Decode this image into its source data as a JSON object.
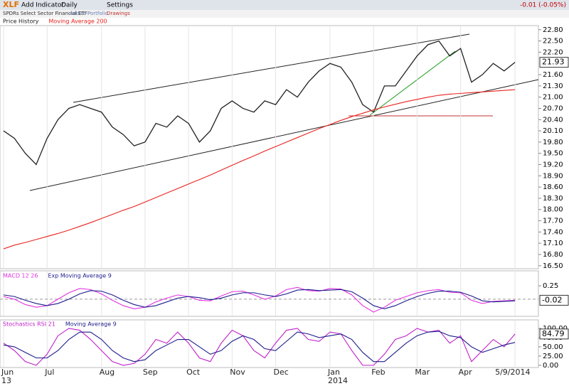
{
  "toolbar": {
    "symbol": "XLF",
    "add_indicator": "Add Indicator",
    "period": "Daily",
    "settings": "Settings",
    "change": "-0.01 (-0.05%)",
    "subtitle": "SPDRs Select Sector Financial ETF",
    "portfolio": "Add to Portfolio",
    "drawings": "Drawings"
  },
  "chart_data": [
    {
      "type": "line",
      "categories": [
        "Jun\n13",
        null,
        null,
        null,
        "Jul",
        null,
        null,
        null,
        null,
        "Aug",
        null,
        null,
        null,
        "Sep",
        null,
        null,
        null,
        "Oct",
        null,
        null,
        null,
        "Nov",
        null,
        null,
        null,
        "Dec",
        null,
        null,
        null,
        null,
        "Jan\n2014",
        null,
        null,
        null,
        "Feb",
        null,
        null,
        null,
        "Mar",
        null,
        null,
        null,
        "Apr",
        null,
        null,
        null,
        null,
        "5/9/2014"
      ],
      "series": [
        {
          "name": "Price History",
          "color": "#222222",
          "values": [
            20.1,
            19.9,
            19.5,
            19.2,
            19.9,
            20.4,
            20.7,
            20.8,
            20.7,
            20.6,
            20.2,
            20.0,
            19.7,
            19.8,
            20.3,
            20.2,
            20.5,
            20.3,
            19.8,
            20.1,
            20.7,
            20.9,
            20.7,
            20.6,
            20.9,
            20.8,
            21.2,
            21.0,
            21.4,
            21.7,
            21.9,
            21.8,
            21.4,
            20.8,
            20.6,
            21.3,
            21.3,
            21.7,
            22.1,
            22.4,
            22.5,
            22.1,
            22.3,
            21.4,
            21.6,
            21.9,
            21.7,
            21.93
          ]
        },
        {
          "name": "Moving Average 200",
          "color": "#e8231e",
          "values": [
            16.95,
            17.05,
            17.12,
            17.2,
            17.28,
            17.36,
            17.45,
            17.55,
            17.65,
            17.76,
            17.87,
            17.98,
            18.08,
            18.2,
            18.32,
            18.44,
            18.56,
            18.68,
            18.8,
            18.92,
            19.05,
            19.18,
            19.31,
            19.43,
            19.56,
            19.68,
            19.8,
            19.92,
            20.04,
            20.16,
            20.27,
            20.38,
            20.48,
            20.57,
            20.66,
            20.74,
            20.81,
            20.88,
            20.94,
            21.0,
            21.05,
            21.08,
            21.1,
            21.12,
            21.14,
            21.16,
            21.18,
            21.2
          ]
        }
      ],
      "ylim": [
        16.42,
        22.91
      ],
      "yticks": [
        {
          "value": 16.5,
          "label": "16.50"
        },
        {
          "value": 16.8,
          "label": "16.80"
        },
        {
          "value": 17.1,
          "label": "17.10"
        },
        {
          "value": 17.4,
          "label": "17.40"
        },
        {
          "value": 17.7,
          "label": "17.70"
        },
        {
          "value": 18.0,
          "label": "18.00"
        },
        {
          "value": 18.3,
          "label": "18.30"
        },
        {
          "value": 18.6,
          "label": "18.60"
        },
        {
          "value": 18.9,
          "label": "18.90"
        },
        {
          "value": 19.2,
          "label": "19.20"
        },
        {
          "value": 19.5,
          "label": "19.50"
        },
        {
          "value": 19.8,
          "label": "19.80"
        },
        {
          "value": 20.1,
          "label": "20.10"
        },
        {
          "value": 20.4,
          "label": "20.40"
        },
        {
          "value": 20.7,
          "label": "20.70"
        },
        {
          "value": 21.0,
          "label": "21.00"
        },
        {
          "value": 21.3,
          "label": "21.30"
        },
        {
          "value": 21.6,
          "label": "21.60"
        },
        {
          "value": 22.2,
          "label": "22.20"
        },
        {
          "value": 22.5,
          "label": "22.50"
        },
        {
          "value": 22.8,
          "label": "22.80"
        }
      ],
      "grid": true
    },
    {
      "type": "line",
      "series": [
        {
          "name": "MACD 12 26",
          "color": "#e034e0",
          "values": [
            0.05,
            0.0,
            -0.1,
            -0.15,
            -0.12,
            0.0,
            0.12,
            0.2,
            0.18,
            0.1,
            -0.02,
            -0.12,
            -0.18,
            -0.15,
            -0.05,
            0.02,
            0.08,
            0.05,
            -0.02,
            -0.03,
            0.06,
            0.14,
            0.15,
            0.08,
            0.0,
            0.06,
            0.18,
            0.22,
            0.16,
            0.15,
            0.2,
            0.19,
            0.08,
            -0.12,
            -0.24,
            -0.15,
            -0.02,
            0.05,
            0.12,
            0.16,
            0.18,
            0.13,
            0.12,
            -0.02,
            -0.08,
            -0.04,
            -0.03,
            -0.02
          ]
        },
        {
          "name": "Exp Moving Average 9",
          "color": "#1c1c8c",
          "values": [
            0.08,
            0.05,
            -0.02,
            -0.08,
            -0.12,
            -0.08,
            0.0,
            0.1,
            0.16,
            0.15,
            0.08,
            -0.02,
            -0.1,
            -0.15,
            -0.12,
            -0.05,
            0.02,
            0.05,
            0.03,
            -0.01,
            0.02,
            0.08,
            0.12,
            0.12,
            0.08,
            0.05,
            0.1,
            0.17,
            0.18,
            0.16,
            0.17,
            0.18,
            0.14,
            0.02,
            -0.12,
            -0.18,
            -0.12,
            -0.03,
            0.05,
            0.11,
            0.15,
            0.15,
            0.13,
            0.06,
            -0.03,
            -0.05,
            -0.04,
            -0.03
          ]
        }
      ],
      "ylim": [
        -0.32,
        0.53
      ],
      "yticks": [
        0.25
      ]
    },
    {
      "type": "line",
      "series": [
        {
          "name": "Stochastics RSI 21",
          "color": "#c020c8",
          "values": [
            60,
            40,
            10,
            0,
            30,
            80,
            100,
            95,
            70,
            40,
            10,
            0,
            5,
            30,
            70,
            60,
            90,
            60,
            20,
            10,
            60,
            95,
            80,
            40,
            20,
            60,
            95,
            100,
            70,
            65,
            90,
            85,
            40,
            0,
            0,
            30,
            70,
            80,
            100,
            90,
            95,
            60,
            80,
            10,
            40,
            70,
            50,
            84.79
          ]
        },
        {
          "name": "Moving Average 9",
          "color": "#1c1c8c",
          "values": [
            55,
            50,
            35,
            20,
            20,
            40,
            70,
            90,
            90,
            70,
            40,
            20,
            10,
            15,
            40,
            55,
            70,
            70,
            50,
            30,
            40,
            65,
            80,
            70,
            45,
            40,
            65,
            90,
            85,
            75,
            80,
            85,
            70,
            35,
            10,
            10,
            35,
            60,
            80,
            90,
            92,
            80,
            75,
            50,
            35,
            45,
            55,
            62
          ]
        }
      ],
      "ylim": [
        -6,
        123
      ],
      "yticks": [
        {
          "value": 0,
          "label": "0.00"
        },
        {
          "value": 25,
          "label": "25.00"
        },
        {
          "value": 50,
          "label": "50.00"
        },
        {
          "value": 75,
          "label": "75.00"
        },
        {
          "value": 100,
          "label": "100.00"
        }
      ]
    }
  ]
}
